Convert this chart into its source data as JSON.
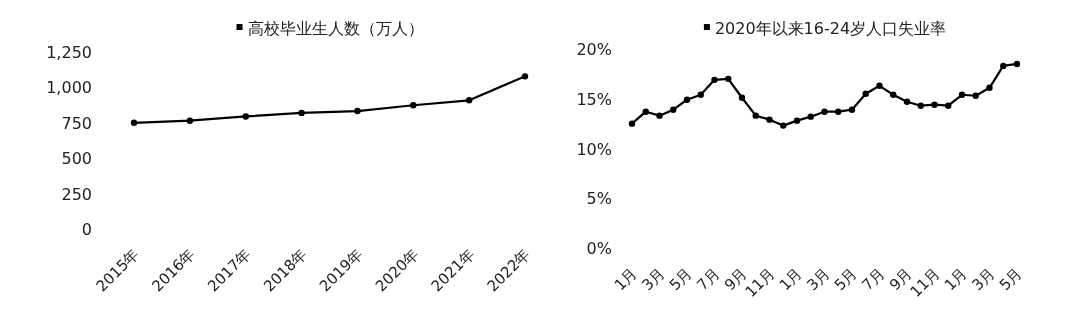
{
  "chart_data": [
    {
      "type": "line",
      "categories": [
        "2015年",
        "2016年",
        "2017年",
        "2018年",
        "2019年",
        "2020年",
        "2021年",
        "2022年"
      ],
      "series": [
        {
          "name": "高校毕业生人数（万人）",
          "color": "#000000",
          "values": [
            750,
            765,
            795,
            820,
            833,
            874,
            909,
            1078
          ]
        }
      ],
      "ylim": [
        0,
        1250
      ],
      "yticks": [
        0,
        250,
        500,
        750,
        {
          "value": 1000,
          "label": "1,000"
        },
        {
          "value": 1250,
          "label": "1,250"
        }
      ],
      "legend": "top",
      "marker": "circle"
    },
    {
      "type": "line",
      "categories": [
        "1月",
        null,
        "3月",
        null,
        "5月",
        null,
        "7月",
        null,
        "9月",
        null,
        "11月",
        null,
        "1月",
        null,
        "3月",
        null,
        "5月",
        null,
        "7月",
        null,
        "9月",
        null,
        "11月",
        null,
        "1月",
        null,
        "3月",
        null,
        "5月"
      ],
      "series": [
        {
          "name": "2020年以来16-24岁人口失业率",
          "color": "#000000",
          "values": [
            12.5,
            13.7,
            13.3,
            13.9,
            14.9,
            15.4,
            16.9,
            17.0,
            15.1,
            13.3,
            12.9,
            12.3,
            12.8,
            13.2,
            13.7,
            13.7,
            13.9,
            15.5,
            16.3,
            15.4,
            14.7,
            14.3,
            14.4,
            14.3,
            15.4,
            15.3,
            16.1,
            18.3,
            18.5
          ]
        }
      ],
      "ylim": [
        0,
        20
      ],
      "yticks": [
        {
          "value": 0,
          "label": "0%"
        },
        {
          "value": 5,
          "label": "5%"
        },
        {
          "value": 10,
          "label": "10%"
        },
        {
          "value": 15,
          "label": "15%"
        },
        {
          "value": 20,
          "label": "20%"
        }
      ],
      "legend": "top",
      "marker": "circle"
    }
  ]
}
